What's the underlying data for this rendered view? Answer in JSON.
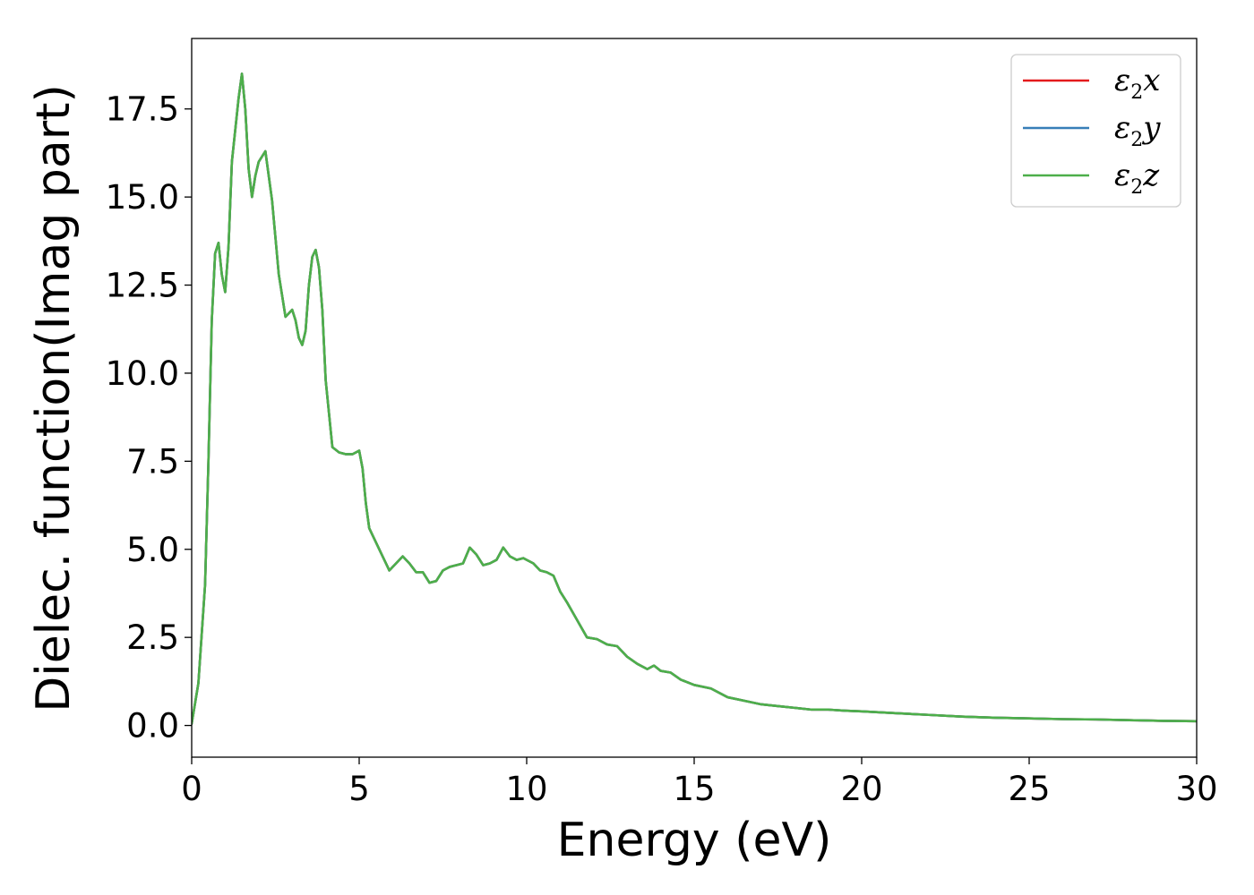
{
  "chart_data": {
    "type": "line",
    "xlabel": "Energy (eV)",
    "ylabel": "Dielec. function(Imag part)",
    "xlim": [
      0,
      30
    ],
    "ylim": [
      -0.9,
      19.5
    ],
    "xticks": [
      0,
      5,
      10,
      15,
      20,
      25,
      30
    ],
    "xtick_labels": [
      "0",
      "5",
      "10",
      "15",
      "20",
      "25",
      "30"
    ],
    "yticks": [
      0.0,
      2.5,
      5.0,
      7.5,
      10.0,
      12.5,
      15.0,
      17.5
    ],
    "ytick_labels": [
      "0.0",
      "2.5",
      "5.0",
      "7.5",
      "10.0",
      "12.5",
      "15.0",
      "17.5"
    ],
    "grid": false,
    "legend_position": "top-right",
    "x": [
      0,
      0.2,
      0.4,
      0.5,
      0.6,
      0.7,
      0.8,
      0.9,
      1.0,
      1.1,
      1.2,
      1.4,
      1.5,
      1.6,
      1.7,
      1.8,
      1.9,
      2.0,
      2.2,
      2.4,
      2.6,
      2.8,
      3.0,
      3.1,
      3.2,
      3.3,
      3.4,
      3.5,
      3.6,
      3.7,
      3.8,
      3.9,
      4.0,
      4.2,
      4.4,
      4.6,
      4.8,
      5.0,
      5.1,
      5.2,
      5.3,
      5.5,
      5.7,
      5.9,
      6.1,
      6.3,
      6.5,
      6.7,
      6.9,
      7.0,
      7.1,
      7.3,
      7.5,
      7.7,
      7.9,
      8.1,
      8.3,
      8.5,
      8.7,
      8.9,
      9.1,
      9.3,
      9.5,
      9.7,
      9.9,
      10.2,
      10.4,
      10.6,
      10.8,
      11.0,
      11.2,
      11.5,
      11.8,
      12.1,
      12.4,
      12.7,
      13.0,
      13.3,
      13.6,
      13.8,
      14.0,
      14.3,
      14.6,
      15.0,
      15.5,
      16.0,
      16.5,
      17.0,
      17.5,
      18.0,
      18.5,
      19.0,
      19.5,
      20.0,
      21.0,
      22.0,
      23.0,
      24.0,
      25.0,
      26.0,
      27.0,
      28.0,
      29.0,
      30.0
    ],
    "series": [
      {
        "name": "ε2x",
        "color": "#e41a1c",
        "values": [
          0.05,
          1.2,
          4.0,
          7.5,
          11.5,
          13.4,
          13.7,
          12.8,
          12.3,
          13.6,
          16.0,
          17.8,
          18.5,
          17.5,
          15.8,
          15.0,
          15.6,
          16.0,
          16.3,
          14.9,
          12.8,
          11.6,
          11.8,
          11.5,
          11.0,
          10.8,
          11.2,
          12.5,
          13.3,
          13.5,
          13.0,
          11.8,
          9.8,
          7.9,
          7.75,
          7.7,
          7.7,
          7.8,
          7.3,
          6.3,
          5.6,
          5.2,
          4.8,
          4.4,
          4.6,
          4.8,
          4.6,
          4.35,
          4.35,
          4.2,
          4.05,
          4.1,
          4.4,
          4.5,
          4.55,
          4.6,
          5.05,
          4.85,
          4.55,
          4.6,
          4.7,
          5.05,
          4.8,
          4.7,
          4.75,
          4.6,
          4.4,
          4.35,
          4.25,
          3.8,
          3.5,
          3.0,
          2.5,
          2.45,
          2.3,
          2.25,
          1.95,
          1.75,
          1.6,
          1.7,
          1.55,
          1.5,
          1.3,
          1.15,
          1.05,
          0.8,
          0.7,
          0.6,
          0.55,
          0.5,
          0.45,
          0.45,
          0.42,
          0.4,
          0.35,
          0.3,
          0.25,
          0.22,
          0.2,
          0.18,
          0.17,
          0.15,
          0.13,
          0.12
        ]
      },
      {
        "name": "ε2y",
        "color": "#377eb8",
        "values": [
          0.05,
          1.2,
          4.0,
          7.5,
          11.5,
          13.4,
          13.7,
          12.8,
          12.3,
          13.6,
          16.0,
          17.8,
          18.5,
          17.5,
          15.8,
          15.0,
          15.6,
          16.0,
          16.3,
          14.9,
          12.8,
          11.6,
          11.8,
          11.5,
          11.0,
          10.8,
          11.2,
          12.5,
          13.3,
          13.5,
          13.0,
          11.8,
          9.8,
          7.9,
          7.75,
          7.7,
          7.7,
          7.8,
          7.3,
          6.3,
          5.6,
          5.2,
          4.8,
          4.4,
          4.6,
          4.8,
          4.6,
          4.35,
          4.35,
          4.2,
          4.05,
          4.1,
          4.4,
          4.5,
          4.55,
          4.6,
          5.05,
          4.85,
          4.55,
          4.6,
          4.7,
          5.05,
          4.8,
          4.7,
          4.75,
          4.6,
          4.4,
          4.35,
          4.25,
          3.8,
          3.5,
          3.0,
          2.5,
          2.45,
          2.3,
          2.25,
          1.95,
          1.75,
          1.6,
          1.7,
          1.55,
          1.5,
          1.3,
          1.15,
          1.05,
          0.8,
          0.7,
          0.6,
          0.55,
          0.5,
          0.45,
          0.45,
          0.42,
          0.4,
          0.35,
          0.3,
          0.25,
          0.22,
          0.2,
          0.18,
          0.17,
          0.15,
          0.13,
          0.12
        ]
      },
      {
        "name": "ε2z",
        "color": "#4daf4a",
        "values": [
          0.05,
          1.2,
          4.0,
          7.5,
          11.5,
          13.4,
          13.7,
          12.8,
          12.3,
          13.6,
          16.0,
          17.8,
          18.5,
          17.5,
          15.8,
          15.0,
          15.6,
          16.0,
          16.3,
          14.9,
          12.8,
          11.6,
          11.8,
          11.5,
          11.0,
          10.8,
          11.2,
          12.5,
          13.3,
          13.5,
          13.0,
          11.8,
          9.8,
          7.9,
          7.75,
          7.7,
          7.7,
          7.8,
          7.3,
          6.3,
          5.6,
          5.2,
          4.8,
          4.4,
          4.6,
          4.8,
          4.6,
          4.35,
          4.35,
          4.2,
          4.05,
          4.1,
          4.4,
          4.5,
          4.55,
          4.6,
          5.05,
          4.85,
          4.55,
          4.6,
          4.7,
          5.05,
          4.8,
          4.7,
          4.75,
          4.6,
          4.4,
          4.35,
          4.25,
          3.8,
          3.5,
          3.0,
          2.5,
          2.45,
          2.3,
          2.25,
          1.95,
          1.75,
          1.6,
          1.7,
          1.55,
          1.5,
          1.3,
          1.15,
          1.05,
          0.8,
          0.7,
          0.6,
          0.55,
          0.5,
          0.45,
          0.45,
          0.42,
          0.4,
          0.35,
          0.3,
          0.25,
          0.22,
          0.2,
          0.18,
          0.17,
          0.15,
          0.13,
          0.12
        ]
      }
    ],
    "legend": [
      {
        "symbol": "ε",
        "sub": "2",
        "var": "x"
      },
      {
        "symbol": "ε",
        "sub": "2",
        "var": "y"
      },
      {
        "symbol": "ε",
        "sub": "2",
        "var": "z"
      }
    ]
  }
}
